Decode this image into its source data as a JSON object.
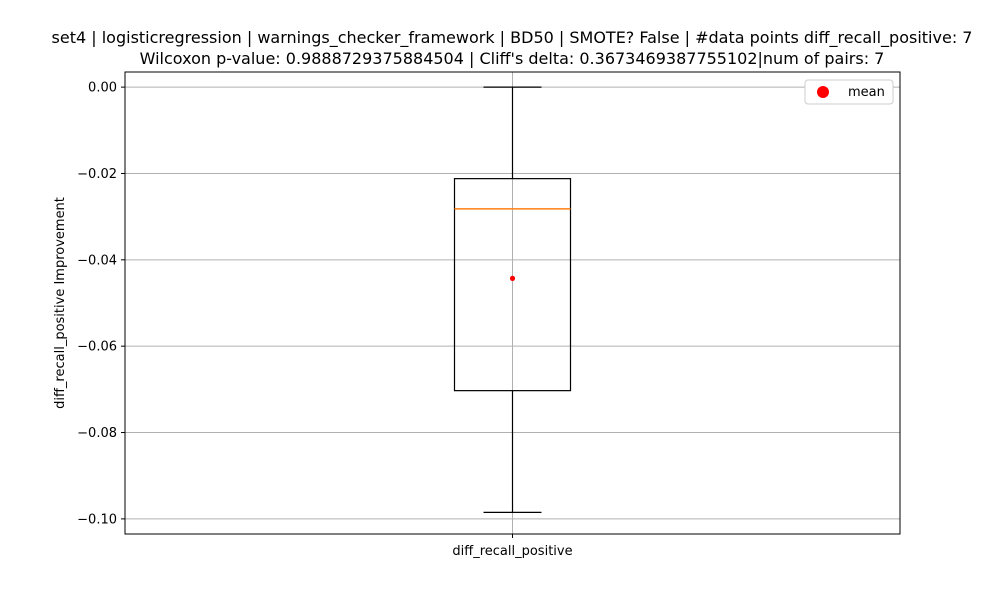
{
  "chart_data": {
    "type": "box",
    "title_lines": [
      "set4 | logisticregression | warnings_checker_framework | BD50 | SMOTE? False | #data points diff_recall_positive: 7",
      "Wilcoxon p-value: 0.9888729375884504 | Cliff's delta: 0.3673469387755102|num of pairs: 7"
    ],
    "ylabel": "diff_recall_positive Improvement",
    "categories": [
      "diff_recall_positive"
    ],
    "ylim": [
      -0.1035,
      0.0035
    ],
    "yticks": [
      0.0,
      -0.02,
      -0.04,
      -0.06,
      -0.08,
      -0.1
    ],
    "ytick_labels": [
      "0.00",
      "−0.02",
      "−0.04",
      "−0.06",
      "−0.08",
      "−0.10"
    ],
    "boxes": [
      {
        "name": "diff_recall_positive",
        "whisker_low": -0.0985,
        "q1": -0.0703,
        "median": -0.0282,
        "q3": -0.0212,
        "whisker_high": 0.0,
        "mean": -0.0443
      }
    ],
    "legend": {
      "entries": [
        "mean"
      ],
      "placement": "upper right"
    },
    "grid": true,
    "colors": {
      "box": "#000000",
      "median": "#ff7f0e",
      "mean": "#ff0000",
      "grid": "#b0b0b0"
    }
  }
}
